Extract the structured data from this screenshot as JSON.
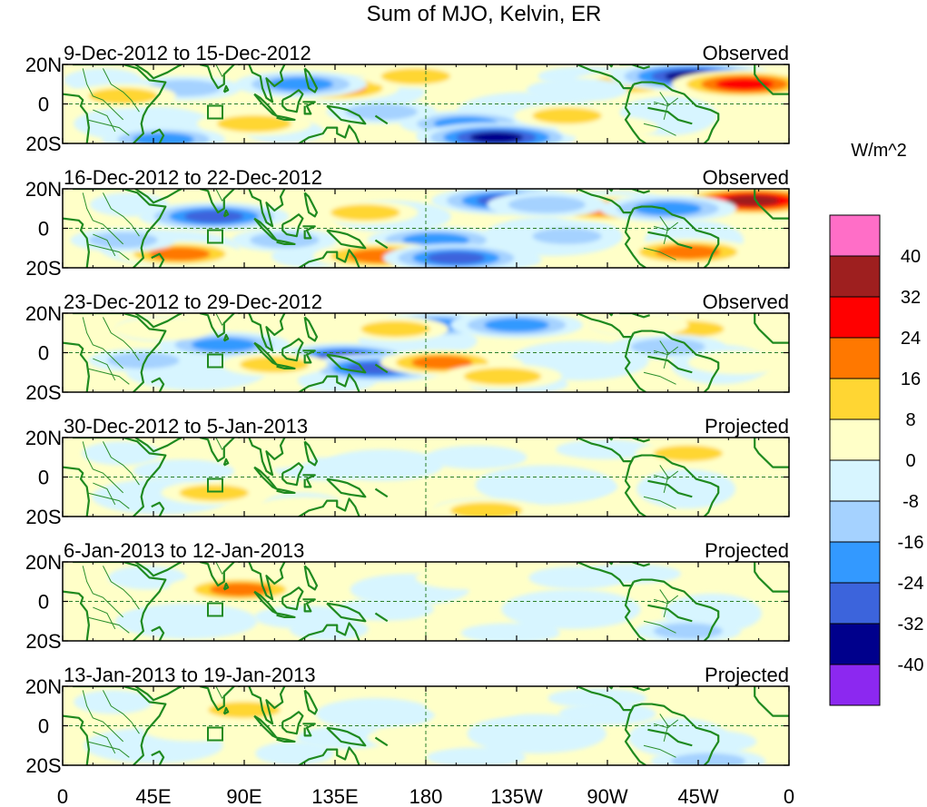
{
  "chart_data": {
    "type": "heatmap",
    "title": "Sum of MJO, Kelvin, ER",
    "units": "W/m^2",
    "x_ticks": [
      "0",
      "45E",
      "90E",
      "135E",
      "180",
      "135W",
      "90W",
      "45W",
      "0"
    ],
    "x_tick_degrees": [
      0,
      45,
      90,
      135,
      180,
      225,
      270,
      315,
      360
    ],
    "y_ticks": [
      "20N",
      "0",
      "20S"
    ],
    "y_tick_degrees": [
      20,
      0,
      -20
    ],
    "xlim": [
      0,
      360
    ],
    "ylim": [
      -20,
      20
    ],
    "colorbar": {
      "levels": [
        "40",
        "32",
        "24",
        "16",
        "8",
        "0",
        "-8",
        "-16",
        "-24",
        "-32",
        "-40"
      ],
      "colors": [
        "#ff6ec7",
        "#9e1f1f",
        "#ff0000",
        "#ff7800",
        "#ffd633",
        "#ffffc8",
        "#d7f5ff",
        "#a5d2ff",
        "#3399ff",
        "#3c64dc",
        "#00008c",
        "#8c28f0"
      ]
    },
    "panels": [
      {
        "period": "9-Dec-2012 to 15-Dec-2012",
        "status": "Observed",
        "anomalies": [
          {
            "lon": 135,
            "lat": 8,
            "value": 20
          },
          {
            "lon": 95,
            "lat": -10,
            "value": 14
          },
          {
            "lon": 60,
            "lat": 8,
            "value": -14
          },
          {
            "lon": 118,
            "lat": 10,
            "value": -22
          },
          {
            "lon": 200,
            "lat": -10,
            "value": -22
          },
          {
            "lon": 215,
            "lat": -17,
            "value": -34
          },
          {
            "lon": 158,
            "lat": -4,
            "value": -12
          },
          {
            "lon": 280,
            "lat": 10,
            "value": 16
          },
          {
            "lon": 255,
            "lat": 7,
            "value": -8
          },
          {
            "lon": 306,
            "lat": 14,
            "value": -26
          },
          {
            "lon": 312,
            "lat": 14,
            "value": -36
          },
          {
            "lon": 338,
            "lat": 10,
            "value": 28
          },
          {
            "lon": 270,
            "lat": -12,
            "value": 8
          },
          {
            "lon": 50,
            "lat": -18,
            "value": -18
          },
          {
            "lon": 30,
            "lat": 4,
            "value": 10
          },
          {
            "lon": 175,
            "lat": 14,
            "value": 10
          },
          {
            "lon": 250,
            "lat": -6,
            "value": 10
          }
        ]
      },
      {
        "period": "16-Dec-2012 to 22-Dec-2012",
        "status": "Observed",
        "anomalies": [
          {
            "lon": 75,
            "lat": 6,
            "value": -30
          },
          {
            "lon": 58,
            "lat": -13,
            "value": 18
          },
          {
            "lon": 150,
            "lat": 8,
            "value": 10
          },
          {
            "lon": 185,
            "lat": -6,
            "value": -24
          },
          {
            "lon": 220,
            "lat": 14,
            "value": -30
          },
          {
            "lon": 270,
            "lat": 10,
            "value": 24
          },
          {
            "lon": 158,
            "lat": -14,
            "value": 24
          },
          {
            "lon": 195,
            "lat": -15,
            "value": -28
          },
          {
            "lon": 310,
            "lat": -12,
            "value": 22
          },
          {
            "lon": 342,
            "lat": 14,
            "value": 34
          },
          {
            "lon": 300,
            "lat": 10,
            "value": -24
          },
          {
            "lon": 30,
            "lat": -6,
            "value": -10
          },
          {
            "lon": 110,
            "lat": -6,
            "value": -10
          },
          {
            "lon": 250,
            "lat": -4,
            "value": -10
          },
          {
            "lon": 240,
            "lat": 12,
            "value": -16
          }
        ]
      },
      {
        "period": "23-Dec-2012 to 29-Dec-2012",
        "status": "Observed",
        "anomalies": [
          {
            "lon": 80,
            "lat": 4,
            "value": -22
          },
          {
            "lon": 140,
            "lat": -2,
            "value": -26
          },
          {
            "lon": 155,
            "lat": -8,
            "value": -28
          },
          {
            "lon": 185,
            "lat": 14,
            "value": -20
          },
          {
            "lon": 225,
            "lat": 14,
            "value": -22
          },
          {
            "lon": 200,
            "lat": -6,
            "value": 14
          },
          {
            "lon": 188,
            "lat": -5,
            "value": 18
          },
          {
            "lon": 218,
            "lat": -12,
            "value": 16
          },
          {
            "lon": 310,
            "lat": 12,
            "value": 12
          },
          {
            "lon": 300,
            "lat": 3,
            "value": -14
          },
          {
            "lon": 105,
            "lat": -6,
            "value": 10
          },
          {
            "lon": 40,
            "lat": -4,
            "value": -12
          },
          {
            "lon": 165,
            "lat": 12,
            "value": 10
          },
          {
            "lon": 50,
            "lat": 12,
            "value": 8
          },
          {
            "lon": 335,
            "lat": -5,
            "value": 8
          },
          {
            "lon": 285,
            "lat": 14,
            "value": 8
          }
        ]
      },
      {
        "period": "30-Dec-2012 to 5-Jan-2013",
        "status": "Projected",
        "anomalies": [
          {
            "lon": 75,
            "lat": -8,
            "value": 10
          },
          {
            "lon": 130,
            "lat": 4,
            "value": -8
          },
          {
            "lon": 205,
            "lat": 10,
            "value": -8
          },
          {
            "lon": 210,
            "lat": -17,
            "value": 12
          },
          {
            "lon": 310,
            "lat": 12,
            "value": 10
          },
          {
            "lon": 60,
            "lat": 3,
            "value": -8
          },
          {
            "lon": 120,
            "lat": -16,
            "value": 8
          },
          {
            "lon": 250,
            "lat": -5,
            "value": -8
          },
          {
            "lon": 100,
            "lat": 10,
            "value": 6
          }
        ]
      },
      {
        "period": "6-Jan-2013 to 12-Jan-2013",
        "status": "Projected",
        "anomalies": [
          {
            "lon": 80,
            "lat": 7,
            "value": 12
          },
          {
            "lon": 88,
            "lat": 6,
            "value": 18
          },
          {
            "lon": 200,
            "lat": 12,
            "value": 8
          },
          {
            "lon": 120,
            "lat": -8,
            "value": -8
          },
          {
            "lon": 160,
            "lat": -4,
            "value": -6
          },
          {
            "lon": 310,
            "lat": -15,
            "value": -10
          },
          {
            "lon": 255,
            "lat": 12,
            "value": -6
          },
          {
            "lon": 50,
            "lat": -10,
            "value": -6
          }
        ]
      },
      {
        "period": "13-Jan-2013 to 19-Jan-2013",
        "status": "Projected",
        "anomalies": [
          {
            "lon": 90,
            "lat": 8,
            "value": 12
          },
          {
            "lon": 65,
            "lat": -2,
            "value": 8
          },
          {
            "lon": 205,
            "lat": 10,
            "value": 8
          },
          {
            "lon": 140,
            "lat": -6,
            "value": -6
          },
          {
            "lon": 320,
            "lat": -18,
            "value": -14
          },
          {
            "lon": 320,
            "lat": -8,
            "value": -6
          },
          {
            "lon": 270,
            "lat": 6,
            "value": -6
          },
          {
            "lon": 175,
            "lat": -6,
            "value": 6
          }
        ]
      }
    ]
  }
}
